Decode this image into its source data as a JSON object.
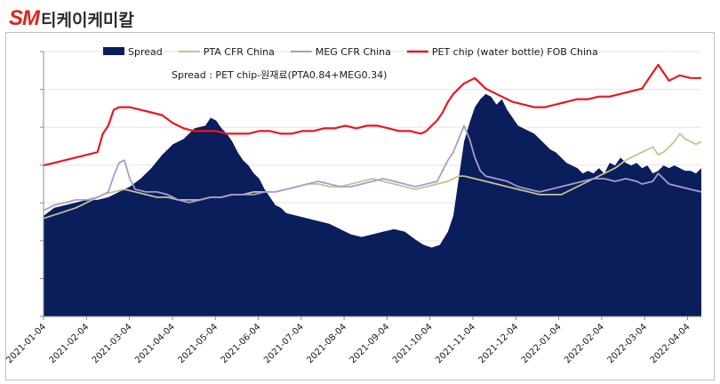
{
  "header": {
    "logo_text": "SM",
    "company_name": "티케이케미칼"
  },
  "chart_data": {
    "type": "area",
    "subtitle": "Spread : PET chip-원재료(PTA0.84+MEG0.34)",
    "x_ticks": [
      "2021-01-04",
      "2021-02-04",
      "2021-03-04",
      "2021-04-04",
      "2021-05-04",
      "2021-06-04",
      "2021-07-04",
      "2021-08-04",
      "2021-09-04",
      "2021-10-04",
      "2021-11-04",
      "2021-12-04",
      "2022-01-04",
      "2022-02-04",
      "2022-03-04",
      "2022-04-04"
    ],
    "y_range": [
      0,
      100
    ],
    "y_tick_count": 7,
    "note": "Y axis tick labels are not shown; values are relative 0-100 plot units.",
    "series": [
      {
        "name": "Spread",
        "kind": "area",
        "color": "#0a1e5c",
        "points": [
          [
            0,
            38
          ],
          [
            4,
            41
          ],
          [
            8,
            42
          ],
          [
            12,
            43
          ],
          [
            16,
            44
          ],
          [
            20,
            44
          ],
          [
            24,
            45
          ],
          [
            28,
            47
          ],
          [
            32,
            49
          ],
          [
            36,
            52
          ],
          [
            40,
            56
          ],
          [
            44,
            61
          ],
          [
            48,
            65
          ],
          [
            52,
            67
          ],
          [
            56,
            71
          ],
          [
            60,
            72
          ],
          [
            62,
            75
          ],
          [
            64,
            74
          ],
          [
            66,
            71
          ],
          [
            68,
            69
          ],
          [
            70,
            66
          ],
          [
            72,
            62
          ],
          [
            74,
            59
          ],
          [
            76,
            57
          ],
          [
            78,
            54
          ],
          [
            80,
            52
          ],
          [
            82,
            48
          ],
          [
            84,
            45
          ],
          [
            86,
            42
          ],
          [
            88,
            41
          ],
          [
            90,
            39
          ],
          [
            94,
            38
          ],
          [
            98,
            37
          ],
          [
            102,
            36
          ],
          [
            106,
            35
          ],
          [
            110,
            33
          ],
          [
            114,
            31
          ],
          [
            118,
            30
          ],
          [
            122,
            31
          ],
          [
            126,
            32
          ],
          [
            130,
            33
          ],
          [
            134,
            32
          ],
          [
            138,
            29
          ],
          [
            141,
            27
          ],
          [
            144,
            26
          ],
          [
            147,
            27
          ],
          [
            150,
            32
          ],
          [
            152,
            38
          ],
          [
            154,
            52
          ],
          [
            156,
            66
          ],
          [
            158,
            73
          ],
          [
            160,
            79
          ],
          [
            162,
            82
          ],
          [
            164,
            84
          ],
          [
            166,
            83
          ],
          [
            168,
            80
          ],
          [
            170,
            82
          ],
          [
            172,
            78
          ],
          [
            174,
            75
          ],
          [
            176,
            72
          ],
          [
            178,
            71
          ],
          [
            180,
            70
          ],
          [
            182,
            69
          ],
          [
            184,
            67
          ],
          [
            186,
            65
          ],
          [
            188,
            63
          ],
          [
            190,
            62
          ],
          [
            192,
            60
          ],
          [
            194,
            58
          ],
          [
            196,
            57
          ],
          [
            198,
            56
          ],
          [
            200,
            54
          ],
          [
            202,
            55
          ],
          [
            204,
            54
          ],
          [
            206,
            56
          ],
          [
            208,
            54
          ],
          [
            210,
            58
          ],
          [
            212,
            57
          ],
          [
            214,
            60
          ],
          [
            216,
            58
          ],
          [
            218,
            57
          ],
          [
            220,
            58
          ],
          [
            222,
            56
          ],
          [
            224,
            57
          ],
          [
            226,
            54
          ],
          [
            228,
            55
          ],
          [
            230,
            57
          ],
          [
            232,
            56
          ],
          [
            234,
            57
          ],
          [
            236,
            56
          ],
          [
            238,
            55
          ],
          [
            240,
            55
          ],
          [
            242,
            54
          ],
          [
            244,
            56
          ]
        ]
      },
      {
        "name": "PTA CFR China",
        "kind": "line",
        "color": "#c3c391",
        "points": [
          [
            0,
            37
          ],
          [
            6,
            39
          ],
          [
            12,
            41
          ],
          [
            18,
            44
          ],
          [
            22,
            46
          ],
          [
            26,
            47
          ],
          [
            30,
            48
          ],
          [
            34,
            47
          ],
          [
            38,
            46
          ],
          [
            42,
            45
          ],
          [
            46,
            45
          ],
          [
            50,
            44
          ],
          [
            54,
            44
          ],
          [
            58,
            44
          ],
          [
            62,
            45
          ],
          [
            66,
            45
          ],
          [
            70,
            46
          ],
          [
            74,
            46
          ],
          [
            78,
            47
          ],
          [
            82,
            47
          ],
          [
            86,
            47
          ],
          [
            90,
            48
          ],
          [
            94,
            49
          ],
          [
            98,
            50
          ],
          [
            102,
            50
          ],
          [
            106,
            49
          ],
          [
            110,
            49
          ],
          [
            114,
            50
          ],
          [
            118,
            51
          ],
          [
            122,
            52
          ],
          [
            126,
            51
          ],
          [
            130,
            50
          ],
          [
            134,
            49
          ],
          [
            138,
            48
          ],
          [
            142,
            49
          ],
          [
            146,
            50
          ],
          [
            150,
            51
          ],
          [
            154,
            53
          ],
          [
            156,
            53
          ],
          [
            160,
            52
          ],
          [
            164,
            51
          ],
          [
            168,
            50
          ],
          [
            172,
            49
          ],
          [
            176,
            48
          ],
          [
            180,
            47
          ],
          [
            184,
            46
          ],
          [
            188,
            46
          ],
          [
            192,
            46
          ],
          [
            196,
            48
          ],
          [
            200,
            50
          ],
          [
            204,
            52
          ],
          [
            208,
            54
          ],
          [
            212,
            56
          ],
          [
            216,
            59
          ],
          [
            220,
            61
          ],
          [
            224,
            63
          ],
          [
            226,
            64
          ],
          [
            228,
            61
          ],
          [
            230,
            62
          ],
          [
            232,
            64
          ],
          [
            234,
            66
          ],
          [
            236,
            69
          ],
          [
            238,
            67
          ],
          [
            240,
            66
          ],
          [
            242,
            65
          ],
          [
            244,
            66
          ]
        ]
      },
      {
        "name": "MEG CFR China",
        "kind": "line",
        "color": "#a89ccc",
        "points": [
          [
            0,
            40
          ],
          [
            4,
            42
          ],
          [
            8,
            43
          ],
          [
            12,
            44
          ],
          [
            16,
            44
          ],
          [
            20,
            45
          ],
          [
            24,
            47
          ],
          [
            26,
            53
          ],
          [
            28,
            58
          ],
          [
            30,
            59
          ],
          [
            32,
            52
          ],
          [
            34,
            48
          ],
          [
            38,
            47
          ],
          [
            42,
            47
          ],
          [
            46,
            46
          ],
          [
            50,
            44
          ],
          [
            54,
            43
          ],
          [
            58,
            44
          ],
          [
            62,
            45
          ],
          [
            66,
            45
          ],
          [
            70,
            46
          ],
          [
            74,
            46
          ],
          [
            78,
            46
          ],
          [
            82,
            47
          ],
          [
            86,
            47
          ],
          [
            90,
            48
          ],
          [
            94,
            49
          ],
          [
            98,
            50
          ],
          [
            102,
            51
          ],
          [
            106,
            50
          ],
          [
            110,
            49
          ],
          [
            114,
            49
          ],
          [
            118,
            50
          ],
          [
            122,
            51
          ],
          [
            126,
            52
          ],
          [
            130,
            51
          ],
          [
            134,
            50
          ],
          [
            138,
            49
          ],
          [
            142,
            50
          ],
          [
            146,
            51
          ],
          [
            148,
            55
          ],
          [
            150,
            59
          ],
          [
            152,
            62
          ],
          [
            154,
            67
          ],
          [
            156,
            72
          ],
          [
            158,
            67
          ],
          [
            160,
            60
          ],
          [
            162,
            55
          ],
          [
            164,
            53
          ],
          [
            168,
            52
          ],
          [
            172,
            51
          ],
          [
            176,
            49
          ],
          [
            180,
            48
          ],
          [
            184,
            47
          ],
          [
            188,
            48
          ],
          [
            192,
            49
          ],
          [
            196,
            50
          ],
          [
            200,
            51
          ],
          [
            204,
            52
          ],
          [
            208,
            52
          ],
          [
            212,
            51
          ],
          [
            216,
            52
          ],
          [
            220,
            51
          ],
          [
            222,
            50
          ],
          [
            226,
            51
          ],
          [
            228,
            54
          ],
          [
            230,
            52
          ],
          [
            232,
            50
          ],
          [
            236,
            49
          ],
          [
            240,
            48
          ],
          [
            244,
            47
          ]
        ]
      },
      {
        "name": "PET chip (water bottle) FOB China",
        "kind": "line",
        "color": "#e8181d",
        "points": [
          [
            0,
            57
          ],
          [
            4,
            58
          ],
          [
            8,
            59
          ],
          [
            12,
            60
          ],
          [
            16,
            61
          ],
          [
            20,
            62
          ],
          [
            22,
            69
          ],
          [
            24,
            72
          ],
          [
            26,
            78
          ],
          [
            28,
            79
          ],
          [
            32,
            79
          ],
          [
            36,
            78
          ],
          [
            40,
            77
          ],
          [
            44,
            76
          ],
          [
            48,
            73
          ],
          [
            52,
            71
          ],
          [
            56,
            70
          ],
          [
            60,
            70
          ],
          [
            64,
            70
          ],
          [
            68,
            69
          ],
          [
            72,
            69
          ],
          [
            76,
            69
          ],
          [
            80,
            70
          ],
          [
            84,
            70
          ],
          [
            88,
            69
          ],
          [
            92,
            69
          ],
          [
            96,
            70
          ],
          [
            100,
            70
          ],
          [
            104,
            71
          ],
          [
            108,
            71
          ],
          [
            112,
            72
          ],
          [
            116,
            71
          ],
          [
            120,
            72
          ],
          [
            124,
            72
          ],
          [
            128,
            71
          ],
          [
            132,
            70
          ],
          [
            136,
            70
          ],
          [
            140,
            69
          ],
          [
            142,
            70
          ],
          [
            144,
            72
          ],
          [
            146,
            74
          ],
          [
            148,
            77
          ],
          [
            150,
            81
          ],
          [
            152,
            84
          ],
          [
            154,
            86
          ],
          [
            156,
            88
          ],
          [
            158,
            89
          ],
          [
            160,
            90
          ],
          [
            162,
            88
          ],
          [
            164,
            86
          ],
          [
            166,
            85
          ],
          [
            168,
            84
          ],
          [
            170,
            83
          ],
          [
            172,
            82
          ],
          [
            174,
            81
          ],
          [
            178,
            80
          ],
          [
            182,
            79
          ],
          [
            186,
            79
          ],
          [
            190,
            80
          ],
          [
            194,
            81
          ],
          [
            198,
            82
          ],
          [
            202,
            82
          ],
          [
            206,
            83
          ],
          [
            210,
            83
          ],
          [
            214,
            84
          ],
          [
            218,
            85
          ],
          [
            222,
            86
          ],
          [
            224,
            89
          ],
          [
            226,
            92
          ],
          [
            228,
            95
          ],
          [
            230,
            92
          ],
          [
            232,
            89
          ],
          [
            234,
            90
          ],
          [
            236,
            91
          ],
          [
            240,
            90
          ],
          [
            244,
            90
          ]
        ]
      }
    ]
  }
}
